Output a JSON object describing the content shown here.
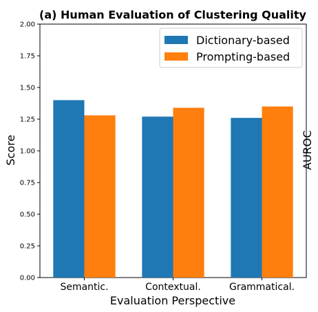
{
  "chart_data": {
    "type": "bar",
    "title": "(a) Human Evaluation of Clustering Quality",
    "xlabel": "Evaluation Perspective",
    "ylabel": "Score",
    "categories": [
      "Semantic.",
      "Contextual.",
      "Grammatical."
    ],
    "ylim": [
      0,
      2.0
    ],
    "yticks": [
      "0.00",
      "0.25",
      "0.50",
      "0.75",
      "1.00",
      "1.25",
      "1.50",
      "1.75",
      "2.00"
    ],
    "series": [
      {
        "name": "Dictionary-based",
        "color": "#1f77b4",
        "values": [
          1.4,
          1.27,
          1.26
        ]
      },
      {
        "name": "Prompting-based",
        "color": "#ff7f0e",
        "values": [
          1.28,
          1.34,
          1.35
        ]
      }
    ],
    "legend_position": "top-right",
    "grid": false,
    "clipped_neighbor_label": "AUROC"
  }
}
